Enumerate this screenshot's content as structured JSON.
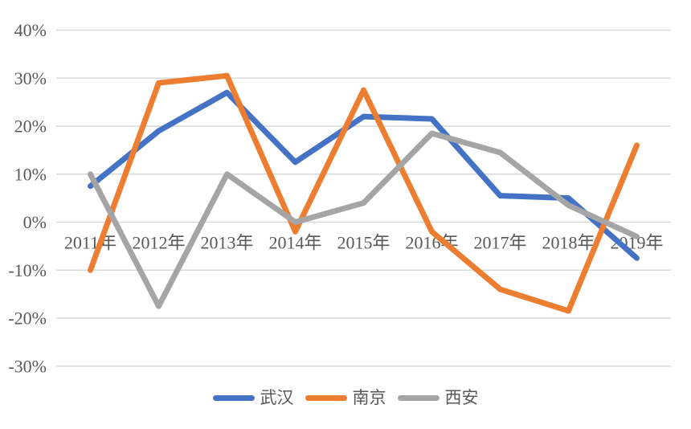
{
  "chart_data": {
    "type": "line",
    "title": "",
    "categories": [
      "2011年",
      "2012年",
      "2013年",
      "2014年",
      "2015年",
      "2016年",
      "2017年",
      "2018年",
      "2019年"
    ],
    "series": [
      {
        "name": "武汉",
        "color": "#4472C4",
        "values": [
          7.5,
          19,
          27,
          12.5,
          22,
          21.5,
          5.5,
          5,
          -7.5
        ]
      },
      {
        "name": "南京",
        "color": "#ED7D31",
        "values": [
          -10,
          29,
          30.5,
          -2,
          27.5,
          -2,
          -14,
          -18.5,
          16
        ]
      },
      {
        "name": "西安",
        "color": "#A5A5A5",
        "values": [
          10,
          -17.5,
          10,
          0,
          4,
          18.5,
          14.5,
          3.5,
          -3
        ]
      }
    ],
    "y_axis": {
      "tick_labels": [
        "40%",
        "30%",
        "20%",
        "10%",
        "0%",
        "-10%",
        "-20%",
        "-30%"
      ],
      "tick_values": [
        40,
        30,
        20,
        10,
        0,
        -10,
        -20,
        -30
      ],
      "unit": "%"
    },
    "xlabel": "",
    "ylabel": "",
    "ylim": [
      -30,
      40
    ],
    "grid": "horizontal",
    "legend_position": "bottom",
    "colors": {
      "gridline": "#D9D9D9",
      "axis_text": "#595959",
      "background": "#FFFFFF"
    }
  }
}
